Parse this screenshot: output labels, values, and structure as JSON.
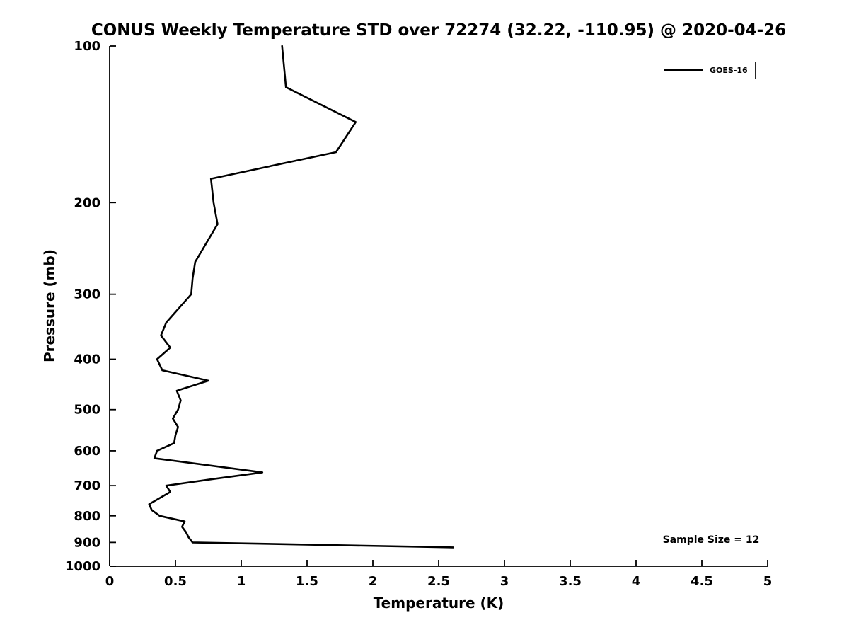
{
  "chart_data": {
    "type": "line",
    "title": "CONUS Weekly Temperature STD over 72274 (32.22, -110.95) @ 2020-04-26",
    "xlabel": "Temperature (K)",
    "ylabel": "Pressure (mb)",
    "xlim": [
      0,
      5
    ],
    "xticks": [
      "0",
      "0.5",
      "1",
      "1.5",
      "2",
      "2.5",
      "3",
      "3.5",
      "4",
      "4.5",
      "5"
    ],
    "yscale": "log",
    "y_inverted": true,
    "ylim": [
      100,
      1000
    ],
    "yticks": [
      100,
      200,
      300,
      400,
      500,
      600,
      700,
      800,
      900,
      1000
    ],
    "grid": false,
    "axis_color": "#000000",
    "legend": {
      "position": "top-right",
      "entries": [
        {
          "label": "GOES-16",
          "color": "#000000",
          "line_width": 3
        }
      ]
    },
    "annotation": "Sample Size = 12",
    "sample_size": 12,
    "series": [
      {
        "name": "GOES-16",
        "color": "#000000",
        "pressure_mb": [
          100,
          120,
          140,
          160,
          180,
          200,
          220,
          260,
          280,
          300,
          340,
          360,
          380,
          400,
          420,
          440,
          460,
          480,
          500,
          520,
          540,
          560,
          580,
          600,
          620,
          660,
          680,
          700,
          720,
          760,
          780,
          800,
          820,
          840,
          860,
          880,
          900,
          920
        ],
        "temperature_std_k": [
          1.31,
          1.34,
          1.87,
          1.72,
          0.77,
          0.79,
          0.82,
          0.65,
          0.63,
          0.62,
          0.43,
          0.39,
          0.46,
          0.36,
          0.4,
          0.75,
          0.51,
          0.54,
          0.52,
          0.48,
          0.52,
          0.5,
          0.49,
          0.36,
          0.34,
          1.16,
          0.78,
          0.43,
          0.46,
          0.3,
          0.32,
          0.38,
          0.57,
          0.55,
          0.58,
          0.6,
          0.63,
          2.61
        ]
      }
    ]
  }
}
